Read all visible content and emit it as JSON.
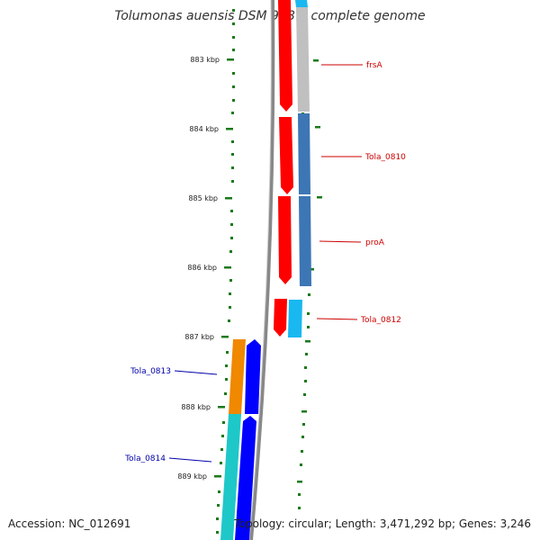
{
  "title": "Tolumonas auensis DSM 9187, complete genome",
  "accession": "Accession: NC_012691",
  "summary": "Topology: circular; Length: 3,471,292 bp; Genes: 3,246",
  "ticks": [
    "883 kbp",
    "884 kbp",
    "885 kbp",
    "886 kbp",
    "887 kbp",
    "888 kbp",
    "889 kbp"
  ],
  "genes_forward": [
    {
      "label": "frsA",
      "color": "#cc0000"
    },
    {
      "label": "Tola_0810",
      "color": "#cc0000"
    },
    {
      "label": "proA",
      "color": "#cc0000"
    },
    {
      "label": "Tola_0812",
      "color": "#cc0000"
    }
  ],
  "genes_reverse": [
    {
      "label": "Tola_0813",
      "color": "#0000aa"
    },
    {
      "label": "Tola_0814",
      "color": "#0000aa"
    }
  ],
  "colors": {
    "forward_cds": "#ff0000",
    "reverse_cds": "#0000ff",
    "backbone": "#888888",
    "tick": "#1a7a1a",
    "cog_gray": "#c0c0c0",
    "cog_steelblue": "#3d76b5",
    "cog_lightblue": "#19b8f0",
    "cog_orange": "#f08800",
    "cog_teal": "#1ec8c8"
  }
}
